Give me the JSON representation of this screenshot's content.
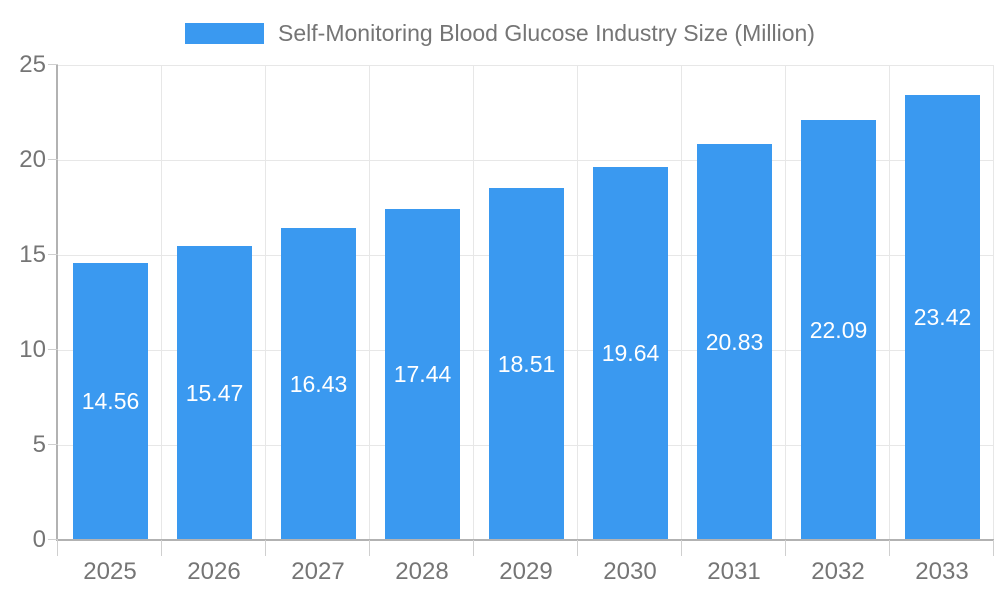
{
  "legend": {
    "swatch_color": "#3a99f0"
  },
  "chart_data": {
    "type": "bar",
    "title": "Self-Monitoring Blood Glucose Industry Size (Million)",
    "categories": [
      "2025",
      "2026",
      "2027",
      "2028",
      "2029",
      "2030",
      "2031",
      "2032",
      "2033"
    ],
    "values": [
      14.56,
      15.47,
      16.43,
      17.44,
      18.51,
      19.64,
      20.83,
      22.09,
      23.42
    ],
    "value_labels": [
      "14.56",
      "15.47",
      "16.43",
      "17.44",
      "18.51",
      "19.64",
      "20.83",
      "22.09",
      "23.42"
    ],
    "xlabel": "",
    "ylabel": "",
    "ylim": [
      0,
      25
    ],
    "y_ticks": [
      0,
      5,
      10,
      15,
      20,
      25
    ],
    "y_tick_labels": [
      "0",
      "5",
      "10",
      "15",
      "20",
      "25"
    ],
    "grid": true,
    "legend_position": "top",
    "bar_color": "#3a99f0",
    "value_label_color": "#ffffff",
    "text_color": "#757575",
    "axis_color": "#b2b2b2",
    "grid_color": "#e7e7e7"
  }
}
